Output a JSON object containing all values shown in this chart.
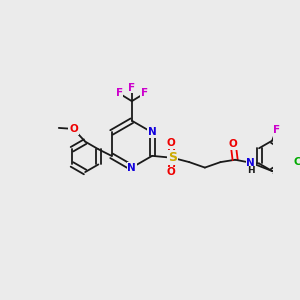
{
  "bg_color": "#ebebeb",
  "bond_color": "#1a1a1a",
  "bond_lw": 1.3,
  "atom_colors": {
    "N": "#1100dd",
    "O": "#ee0000",
    "F": "#cc00cc",
    "S": "#ccaa00",
    "Cl": "#00aa00",
    "H": "#1a1a1a"
  },
  "fs": 7.5,
  "fss": 6.5,
  "figsize": [
    3.0,
    3.0
  ],
  "dpi": 100,
  "xlim": [
    0,
    14
  ],
  "ylim": [
    0,
    14
  ]
}
